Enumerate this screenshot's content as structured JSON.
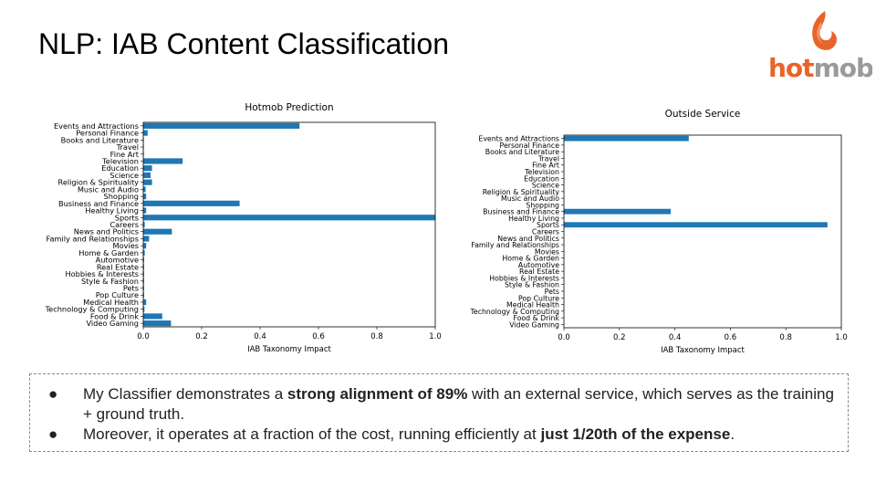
{
  "slide": {
    "title": "NLP: IAB Content Classification"
  },
  "logo": {
    "text_hot": "hot",
    "text_mob": "mob",
    "brand_orange": "#e8642a",
    "brand_gray": "#9a9a9a"
  },
  "chart_data": [
    {
      "type": "bar",
      "orientation": "horizontal",
      "title": "Hotmob Prediction",
      "xlabel": "IAB Taxonomy Impact",
      "xlim": [
        0,
        1.0
      ],
      "xticks": [
        "0.0",
        "0.2",
        "0.4",
        "0.6",
        "0.8",
        "1.0"
      ],
      "color": "#1f77b4",
      "categories": [
        "Events and Attractions",
        "Personal Finance",
        "Books and Literature",
        "Travel",
        "Fine Art",
        "Television",
        "Education",
        "Science",
        "Religion & Spirituality",
        "Music and Audio",
        "Shopping",
        "Business and Finance",
        "Healthy Living",
        "Sports",
        "Careers",
        "News and Politics",
        "Family and Relationships",
        "Movies",
        "Home & Garden",
        "Automotive",
        "Real Estate",
        "Hobbies & Interests",
        "Style & Fashion",
        "Pets",
        "Pop Culture",
        "Medical Health",
        "Technology & Computing",
        "Food & Drink",
        "Video Gaming"
      ],
      "values": [
        0.535,
        0.015,
        0.002,
        0.002,
        0.002,
        0.135,
        0.03,
        0.025,
        0.03,
        0.008,
        0.01,
        0.33,
        0.01,
        1.0,
        0.005,
        0.098,
        0.02,
        0.01,
        0.005,
        0.003,
        0.003,
        0.003,
        0.003,
        0.003,
        0.003,
        0.01,
        0.004,
        0.065,
        0.095
      ]
    },
    {
      "type": "bar",
      "orientation": "horizontal",
      "title": "Outside Service",
      "xlabel": "IAB Taxonomy Impact",
      "xlim": [
        0,
        1.0
      ],
      "xticks": [
        "0.0",
        "0.2",
        "0.4",
        "0.6",
        "0.8",
        "1.0"
      ],
      "color": "#1f77b4",
      "categories": [
        "Events and Attractions",
        "Personal Finance",
        "Books and Literature",
        "Travel",
        "Fine Art",
        "Television",
        "Education",
        "Science",
        "Religion & Spirituality",
        "Music and Audio",
        "Shopping",
        "Business and Finance",
        "Healthy Living",
        "Sports",
        "Careers",
        "News and Politics",
        "Family and Relationships",
        "Movies",
        "Home & Garden",
        "Automotive",
        "Real Estate",
        "Hobbies & Interests",
        "Style & Fashion",
        "Pets",
        "Pop Culture",
        "Medical Health",
        "Technology & Computing",
        "Food & Drink",
        "Video Gaming"
      ],
      "values": [
        0.45,
        0,
        0,
        0,
        0,
        0,
        0,
        0,
        0,
        0,
        0,
        0.385,
        0,
        0.95,
        0,
        0,
        0,
        0,
        0,
        0,
        0,
        0,
        0,
        0,
        0,
        0,
        0,
        0,
        0
      ]
    }
  ],
  "bullets": [
    {
      "marker": "●",
      "pre": "My Classifier demonstrates a ",
      "bold": "strong alignment of 89%",
      "post": " with an external service, which serves as the training + ground truth."
    },
    {
      "marker": "●",
      "pre": "Moreover, it operates at a fraction of the cost, running efficiently at ",
      "bold": "just 1/20th of the expense",
      "post": "."
    }
  ]
}
